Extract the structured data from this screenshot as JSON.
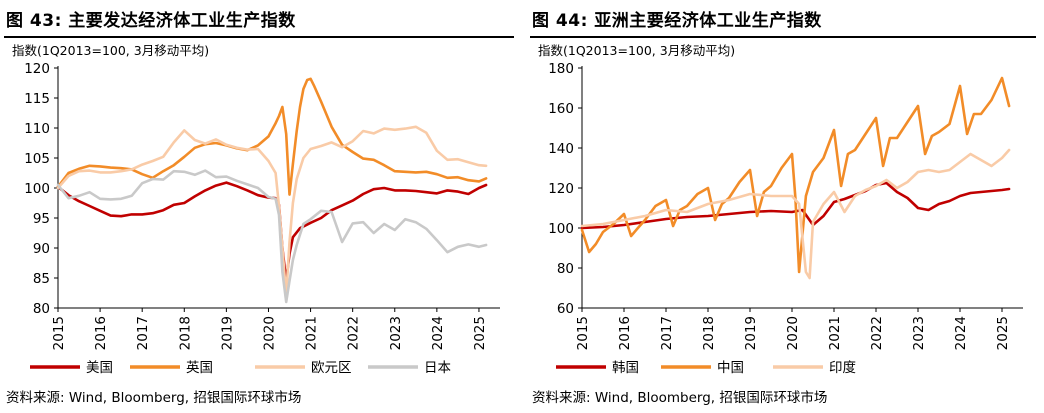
{
  "charts": [
    {
      "title": "图 43: 主要发达经济体工业生产指数",
      "source": "资料来源: Wind, Bloomberg, 招银国际环球市场",
      "chart_data": {
        "type": "line",
        "ylabel": "指数(1Q2013=100, 3月移动平均)",
        "ylim": [
          80,
          120
        ],
        "yticks": [
          80,
          85,
          90,
          95,
          100,
          105,
          110,
          115,
          120
        ],
        "xlim": [
          2015,
          2025.5
        ],
        "xticks": [
          2015,
          2016,
          2017,
          2018,
          2019,
          2020,
          2021,
          2022,
          2023,
          2024,
          2025
        ],
        "series": [
          {
            "name": "美国",
            "color": "#c00000",
            "x": [
              2015,
              2015.25,
              2015.5,
              2015.75,
              2016,
              2016.25,
              2016.5,
              2016.75,
              2017,
              2017.25,
              2017.5,
              2017.75,
              2018,
              2018.25,
              2018.5,
              2018.75,
              2019,
              2019.25,
              2019.5,
              2019.75,
              2020,
              2020.17,
              2020.25,
              2020.33,
              2020.42,
              2020.5,
              2020.58,
              2020.75,
              2021,
              2021.25,
              2021.5,
              2021.75,
              2022,
              2022.25,
              2022.5,
              2022.75,
              2023,
              2023.25,
              2023.5,
              2023.75,
              2024,
              2024.25,
              2024.5,
              2024.75,
              2025,
              2025.17
            ],
            "y": [
              100.2,
              98.8,
              97.8,
              97.0,
              96.2,
              95.4,
              95.3,
              95.6,
              95.6,
              95.8,
              96.3,
              97.2,
              97.5,
              98.6,
              99.6,
              100.4,
              100.9,
              100.3,
              99.6,
              98.8,
              98.4,
              98.3,
              97.2,
              90.0,
              84.5,
              89.0,
              91.8,
              93.3,
              94.2,
              95.0,
              96.3,
              97.1,
              97.9,
              99.0,
              99.8,
              100.0,
              99.6,
              99.6,
              99.5,
              99.3,
              99.1,
              99.6,
              99.4,
              99.0,
              100.0,
              100.5
            ]
          },
          {
            "name": "英国",
            "color": "#f28c28",
            "x": [
              2015,
              2015.25,
              2015.5,
              2015.75,
              2016,
              2016.25,
              2016.5,
              2016.75,
              2017,
              2017.25,
              2017.5,
              2017.75,
              2018,
              2018.25,
              2018.5,
              2018.75,
              2019,
              2019.25,
              2019.5,
              2019.75,
              2020,
              2020.17,
              2020.25,
              2020.33,
              2020.42,
              2020.5,
              2020.58,
              2020.67,
              2020.75,
              2020.83,
              2020.92,
              2021,
              2021.08,
              2021.25,
              2021.5,
              2021.75,
              2022,
              2022.25,
              2022.5,
              2022.75,
              2023,
              2023.25,
              2023.5,
              2023.75,
              2024,
              2024.25,
              2024.5,
              2024.75,
              2025,
              2025.17
            ],
            "y": [
              100.2,
              102.5,
              103.2,
              103.7,
              103.6,
              103.4,
              103.3,
              103.1,
              102.3,
              101.7,
              102.8,
              103.8,
              105.2,
              106.7,
              107.3,
              107.5,
              107.1,
              106.6,
              106.3,
              107.1,
              108.6,
              110.8,
              112.0,
              113.5,
              109.0,
              98.9,
              104.0,
              109.5,
              113.5,
              116.5,
              118.0,
              118.2,
              117.1,
              114.4,
              110.2,
              107.2,
              106.0,
              104.9,
              104.7,
              103.8,
              102.8,
              102.7,
              102.6,
              102.7,
              102.3,
              101.7,
              101.8,
              101.3,
              101.1,
              101.6
            ]
          },
          {
            "name": "欧元区",
            "color": "#f9cba7",
            "x": [
              2015,
              2015.25,
              2015.5,
              2015.75,
              2016,
              2016.25,
              2016.5,
              2016.75,
              2017,
              2017.25,
              2017.5,
              2017.75,
              2018,
              2018.25,
              2018.5,
              2018.75,
              2019,
              2019.25,
              2019.5,
              2019.75,
              2020,
              2020.17,
              2020.25,
              2020.33,
              2020.42,
              2020.5,
              2020.58,
              2020.67,
              2020.83,
              2021,
              2021.25,
              2021.5,
              2021.75,
              2022,
              2022.25,
              2022.5,
              2022.75,
              2023,
              2023.25,
              2023.5,
              2023.75,
              2024,
              2024.25,
              2024.5,
              2024.75,
              2025,
              2025.17
            ],
            "y": [
              100.0,
              102.0,
              102.8,
              102.9,
              102.6,
              102.6,
              102.8,
              103.1,
              103.9,
              104.5,
              105.2,
              107.6,
              109.6,
              108.0,
              107.4,
              108.1,
              107.2,
              106.7,
              106.4,
              106.5,
              104.5,
              102.5,
              97.0,
              90.0,
              82.0,
              91.0,
              97.5,
              101.5,
              105.0,
              106.5,
              107.0,
              107.6,
              106.8,
              107.8,
              109.5,
              109.1,
              109.9,
              109.7,
              109.9,
              110.2,
              109.2,
              106.2,
              104.7,
              104.8,
              104.3,
              103.8,
              103.7
            ]
          },
          {
            "name": "日本",
            "color": "#c9c9c9",
            "x": [
              2015,
              2015.25,
              2015.5,
              2015.75,
              2016,
              2016.25,
              2016.5,
              2016.75,
              2017,
              2017.25,
              2017.5,
              2017.75,
              2018,
              2018.25,
              2018.5,
              2018.75,
              2019,
              2019.25,
              2019.5,
              2019.75,
              2020,
              2020.17,
              2020.25,
              2020.33,
              2020.42,
              2020.5,
              2020.58,
              2020.67,
              2020.83,
              2021,
              2021.25,
              2021.5,
              2021.75,
              2022,
              2022.25,
              2022.5,
              2022.75,
              2023,
              2023.25,
              2023.5,
              2023.75,
              2024,
              2024.25,
              2024.5,
              2024.75,
              2025,
              2025.17
            ],
            "y": [
              100.5,
              98.3,
              98.7,
              99.3,
              98.2,
              98.1,
              98.2,
              98.7,
              100.8,
              101.5,
              101.4,
              102.8,
              102.7,
              102.2,
              102.9,
              101.8,
              101.9,
              101.2,
              100.6,
              100.0,
              98.5,
              98.2,
              95.5,
              86.0,
              81.0,
              84.5,
              88.0,
              90.5,
              94.0,
              94.8,
              96.2,
              96.0,
              91.0,
              94.1,
              94.3,
              92.5,
              94.0,
              93.0,
              94.8,
              94.3,
              93.2,
              91.3,
              89.3,
              90.2,
              90.6,
              90.2,
              90.5
            ]
          }
        ]
      }
    },
    {
      "title": "图 44: 亚洲主要经济体工业生产指数",
      "source": "资料来源: Wind, Bloomberg, 招银国际环球市场",
      "chart_data": {
        "type": "line",
        "ylabel": "指数(1Q2013=100, 3月移动平均)",
        "ylim": [
          60,
          180
        ],
        "yticks": [
          60,
          80,
          100,
          120,
          140,
          160,
          180
        ],
        "xlim": [
          2015,
          2025.5
        ],
        "xticks": [
          2015,
          2016,
          2017,
          2018,
          2019,
          2020,
          2021,
          2022,
          2023,
          2024,
          2025
        ],
        "series": [
          {
            "name": "韩国",
            "color": "#c00000",
            "x": [
              2015,
              2015.5,
              2016,
              2016.5,
              2017,
              2017.5,
              2018,
              2018.5,
              2019,
              2019.5,
              2020,
              2020.25,
              2020.5,
              2020.75,
              2021,
              2021.25,
              2021.5,
              2021.75,
              2022,
              2022.25,
              2022.5,
              2022.75,
              2023,
              2023.25,
              2023.5,
              2023.75,
              2024,
              2024.25,
              2024.5,
              2024.75,
              2025,
              2025.17
            ],
            "y": [
              100.0,
              100.5,
              101.5,
              103.0,
              104.5,
              105.5,
              106.0,
              107.0,
              108.0,
              108.5,
              108.0,
              109.0,
              101.5,
              106.0,
              113.0,
              114.5,
              116.5,
              118.5,
              121.5,
              122.5,
              118.0,
              115.0,
              110.0,
              109.0,
              112.0,
              113.5,
              116.0,
              117.5,
              118.0,
              118.5,
              119.0,
              119.5
            ]
          },
          {
            "name": "中国",
            "color": "#f28c28",
            "x": [
              2015,
              2015.17,
              2015.33,
              2015.5,
              2015.75,
              2016,
              2016.17,
              2016.33,
              2016.5,
              2016.75,
              2017,
              2017.17,
              2017.33,
              2017.5,
              2017.75,
              2018,
              2018.17,
              2018.33,
              2018.5,
              2018.75,
              2019,
              2019.17,
              2019.33,
              2019.5,
              2019.75,
              2020,
              2020.08,
              2020.17,
              2020.33,
              2020.5,
              2020.75,
              2021,
              2021.17,
              2021.33,
              2021.5,
              2021.75,
              2022,
              2022.17,
              2022.33,
              2022.5,
              2022.75,
              2023,
              2023.17,
              2023.33,
              2023.5,
              2023.75,
              2024,
              2024.17,
              2024.33,
              2024.5,
              2024.75,
              2025,
              2025.17
            ],
            "y": [
              99.0,
              88.0,
              92.0,
              98.0,
              102.0,
              107.0,
              96.0,
              100.0,
              104.0,
              111.0,
              114.0,
              101.0,
              109.0,
              111.0,
              117.0,
              120.0,
              104.0,
              112.0,
              115.0,
              123.0,
              129.0,
              106.0,
              118.0,
              121.0,
              130.0,
              137.0,
              115.0,
              78.0,
              116.0,
              128.0,
              135.0,
              149.0,
              121.0,
              137.0,
              139.0,
              147.0,
              155.0,
              131.0,
              145.0,
              145.0,
              153.0,
              161.0,
              137.0,
              146.0,
              148.0,
              152.0,
              171.0,
              147.0,
              157.0,
              157.0,
              164.0,
              175.0,
              161.0
            ]
          },
          {
            "name": "印度",
            "color": "#f9cba7",
            "x": [
              2015,
              2015.5,
              2016,
              2016.5,
              2017,
              2017.5,
              2018,
              2018.5,
              2019,
              2019.5,
              2020,
              2020.17,
              2020.33,
              2020.42,
              2020.5,
              2020.75,
              2021,
              2021.25,
              2021.5,
              2021.75,
              2022,
              2022.25,
              2022.5,
              2022.75,
              2023,
              2023.25,
              2023.5,
              2023.75,
              2024,
              2024.25,
              2024.5,
              2024.75,
              2025,
              2025.17
            ],
            "y": [
              101.0,
              102.0,
              104.0,
              106.0,
              109.0,
              108.0,
              112.0,
              114.0,
              117.0,
              116.0,
              116.0,
              112.0,
              78.0,
              75.0,
              103.0,
              112.0,
              118.0,
              108.0,
              116.0,
              119.0,
              121.0,
              124.0,
              120.0,
              123.0,
              128.0,
              129.0,
              128.0,
              129.0,
              133.0,
              137.0,
              134.0,
              131.0,
              135.0,
              139.0
            ]
          }
        ]
      }
    }
  ]
}
